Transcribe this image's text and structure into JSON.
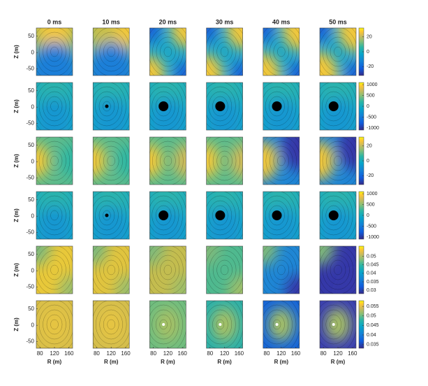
{
  "chart_data": [
    {
      "type": "heatmap",
      "titles": [
        "0 ms",
        "10 ms",
        "20 ms",
        "30 ms",
        "40 ms",
        "50 ms"
      ],
      "ylabel": "Z (m)",
      "ylim": [
        -70,
        75
      ],
      "yticks": [
        50,
        0,
        -50
      ],
      "clim": [
        -32,
        32
      ],
      "cticks": [
        20,
        0,
        -20
      ],
      "colormap": "parula"
    },
    {
      "type": "heatmap",
      "ylabel": "Z (m)",
      "ylim": [
        -70,
        75
      ],
      "yticks": [
        50,
        0,
        -50
      ],
      "clim": [
        -1100,
        1100
      ],
      "cticks": [
        1000,
        500,
        0,
        -500,
        -1000
      ],
      "colormap": "parula"
    },
    {
      "type": "heatmap",
      "ylabel": "Z (m)",
      "ylim": [
        -70,
        75
      ],
      "yticks": [
        50,
        0,
        -50
      ],
      "clim": [
        -32,
        32
      ],
      "cticks": [
        20,
        0,
        -20
      ],
      "colormap": "parula"
    },
    {
      "type": "heatmap",
      "ylabel": "Z (m)",
      "ylim": [
        -70,
        75
      ],
      "yticks": [
        50,
        0,
        -50
      ],
      "clim": [
        -1100,
        1100
      ],
      "cticks": [
        1000,
        500,
        0,
        -500,
        -1000
      ],
      "colormap": "parula"
    },
    {
      "type": "heatmap",
      "ylabel": "Z (m)",
      "ylim": [
        -70,
        75
      ],
      "yticks": [
        50,
        0,
        -50
      ],
      "clim": [
        0.028,
        0.056
      ],
      "cticks": [
        0.05,
        0.045,
        0.04,
        0.035,
        0.03
      ],
      "colormap": "parula"
    },
    {
      "type": "heatmap",
      "ylabel": "Z (m)",
      "ylim": [
        -70,
        75
      ],
      "yticks": [
        50,
        0,
        -50
      ],
      "clim": [
        0.033,
        0.058
      ],
      "cticks": [
        0.055,
        0.05,
        0.045,
        0.04,
        0.035
      ],
      "colormap": "parula",
      "xlabel": "R (m)",
      "xlim": [
        70,
        170
      ],
      "xticks": [
        80,
        120,
        160
      ]
    }
  ]
}
